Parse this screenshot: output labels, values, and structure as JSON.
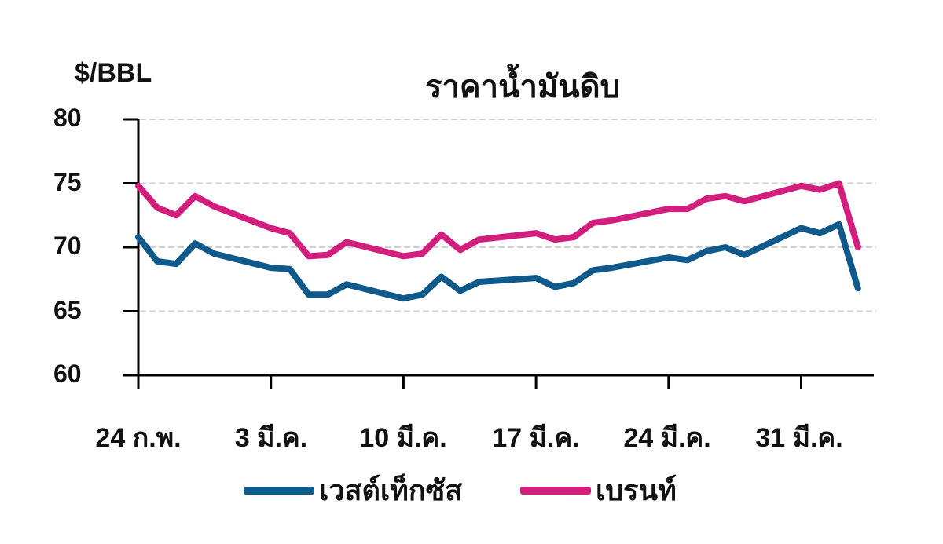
{
  "chart": {
    "unit_label": "$/BBL",
    "title": "ราคาน้ำมันดิบ",
    "y_ticks": [
      "80",
      "75",
      "70",
      "65",
      "60"
    ],
    "x_ticks": [
      "24 ก.พ.",
      "3 มี.ค.",
      "10 มี.ค.",
      "17 มี.ค.",
      "24 มี.ค.",
      "31 มี.ค."
    ],
    "legend": [
      {
        "label": "เวสต์เท็กซัส",
        "color": "#0f5a8a"
      },
      {
        "label": "เบรนท์",
        "color": "#d21f7d"
      }
    ]
  },
  "chart_data": {
    "type": "line",
    "title": "ราคาน้ำมันดิบ",
    "xlabel": "",
    "ylabel": "$/BBL",
    "ylim": [
      60,
      80
    ],
    "y_ticks": [
      60,
      65,
      70,
      75,
      80
    ],
    "x_tick_labels": [
      "24 ก.พ.",
      "3 มี.ค.",
      "10 มี.ค.",
      "17 มี.ค.",
      "24 มี.ค.",
      "31 มี.ค."
    ],
    "grid": "horizontal dashed",
    "legend_position": "bottom",
    "x": [
      "24 Feb",
      "25 Feb",
      "26 Feb",
      "27 Feb",
      "28 Feb",
      "3 Mar",
      "4 Mar",
      "5 Mar",
      "6 Mar",
      "7 Mar",
      "10 Mar",
      "11 Mar",
      "12 Mar",
      "13 Mar",
      "14 Mar",
      "17 Mar",
      "18 Mar",
      "19 Mar",
      "20 Mar",
      "21 Mar",
      "24 Mar",
      "25 Mar",
      "26 Mar",
      "27 Mar",
      "28 Mar",
      "31 Mar",
      "1 Apr",
      "2 Apr",
      "3 Apr"
    ],
    "x_day_offset": [
      0,
      1,
      2,
      3,
      4,
      7,
      8,
      9,
      10,
      11,
      14,
      15,
      16,
      17,
      18,
      21,
      22,
      23,
      24,
      25,
      28,
      29,
      30,
      31,
      32,
      35,
      36,
      37,
      38
    ],
    "series": [
      {
        "name": "เวสต์เท็กซัส",
        "color": "#0f5a8a",
        "values": [
          70.8,
          68.9,
          68.7,
          70.3,
          69.5,
          68.4,
          68.3,
          66.3,
          66.3,
          67.1,
          66.0,
          66.3,
          67.7,
          66.6,
          67.3,
          67.6,
          66.9,
          67.2,
          68.2,
          68.4,
          69.2,
          69.0,
          69.7,
          70.0,
          69.4,
          71.5,
          71.1,
          71.8,
          66.8
        ]
      },
      {
        "name": "เบรนท์",
        "color": "#d21f7d",
        "values": [
          74.8,
          73.1,
          72.5,
          74.0,
          73.2,
          71.5,
          71.1,
          69.3,
          69.4,
          70.4,
          69.3,
          69.5,
          71.0,
          69.8,
          70.6,
          71.1,
          70.6,
          70.8,
          71.9,
          72.1,
          73.0,
          73.0,
          73.8,
          74.0,
          73.6,
          74.8,
          74.5,
          75.0,
          70.0
        ]
      }
    ]
  }
}
